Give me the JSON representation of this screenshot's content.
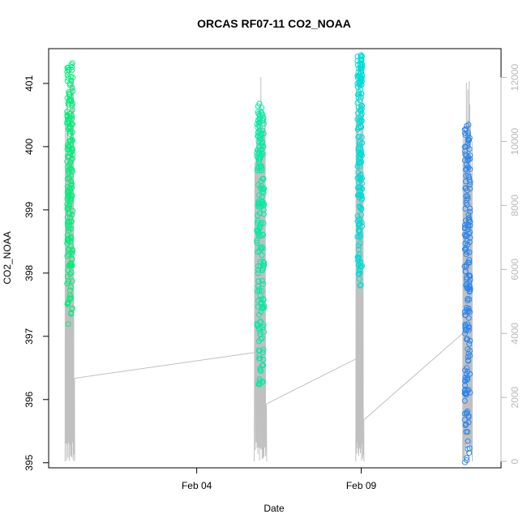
{
  "chart_data": {
    "type": "scatter",
    "title": "ORCAS RF07-11 CO2_NOAA",
    "xlabel": "Date",
    "ylabel": "CO2_NOAA",
    "x_axis": {
      "type": "date",
      "range": [
        "2016-01-30T12:00",
        "2016-02-13T06:00"
      ],
      "ticks": [
        {
          "value": "2016-02-04T00:00",
          "label": "Feb 04"
        },
        {
          "value": "2016-02-09T00:00",
          "label": "Feb 09"
        }
      ]
    },
    "y_axis": {
      "range": [
        394.92,
        401.55
      ],
      "ticks": [
        395,
        396,
        397,
        398,
        399,
        400,
        401
      ]
    },
    "y2_axis": {
      "label": "",
      "range": [
        -200,
        12900
      ],
      "ticks": [
        0,
        2000,
        4000,
        6000,
        8000,
        10000,
        12000
      ],
      "color": "#b9b9b9"
    },
    "grid": false,
    "legend": "none",
    "flights": [
      {
        "start": "2016-01-31T00:00",
        "end": "2016-01-31T07:00",
        "y_min": 397.15,
        "y_max": 401.35,
        "color": "#00ee7a",
        "alt_start": 11000,
        "alt_end": 2600
      },
      {
        "start": "2016-02-05T18:00",
        "end": "2016-02-06T03:00",
        "y_min": 396.15,
        "y_max": 400.7,
        "color": "#00eba2",
        "alt_start": 3400,
        "alt_end": 1800
      },
      {
        "start": "2016-02-08T20:00",
        "end": "2016-02-09T02:00",
        "y_min": 397.8,
        "y_max": 401.45,
        "color": "#00dcd6",
        "alt_start": 3200,
        "alt_end": 1300
      },
      {
        "start": "2016-02-12T02:00",
        "end": "2016-02-12T09:00",
        "y_min": 395.0,
        "y_max": 400.35,
        "color": "#2a86ee",
        "alt_start": 4000,
        "alt_end": 10000
      }
    ],
    "altitude_color": "#c0c0c0"
  }
}
